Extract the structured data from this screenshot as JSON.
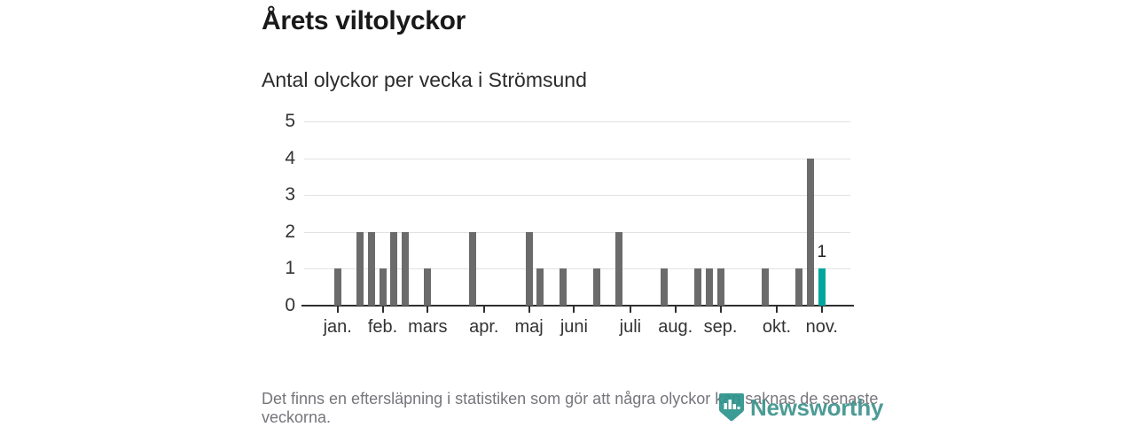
{
  "title": "Årets viltolyckor",
  "subtitle": "Antal olyckor per vecka i Strömsund",
  "footnote": "Det finns en eftersläpning i statistiken som gör att några olyckor kan saknas de senaste veckorna.",
  "logo": {
    "brand": "Newsworthy",
    "icon": "newsworthy-pin-barchart-icon",
    "color": "#3f948e"
  },
  "colors": {
    "bar": "#6b6b6b",
    "highlight": "#00a69e",
    "grid": "#e2e2e2",
    "axis": "#2f2f2f",
    "tick": "#2f2f2f",
    "title": "#191919",
    "subtitle": "#2b2b2b",
    "axis_label": "#333333",
    "footnote_text": "#76757b"
  },
  "chart_data": {
    "type": "bar",
    "title": "Årets viltolyckor",
    "subtitle": "Antal olyckor per vecka i Strömsund",
    "x_unit": "vecka",
    "n_weeks": 46,
    "values": [
      1,
      0,
      2,
      2,
      1,
      2,
      2,
      0,
      1,
      0,
      0,
      0,
      2,
      0,
      0,
      0,
      0,
      2,
      1,
      0,
      1,
      0,
      0,
      1,
      0,
      2,
      0,
      0,
      0,
      1,
      0,
      0,
      1,
      1,
      1,
      0,
      0,
      0,
      1,
      0,
      0,
      1,
      4,
      1,
      0,
      0
    ],
    "highlight": {
      "week": 44,
      "value": 1,
      "label": "1"
    },
    "ylim": [
      0,
      5
    ],
    "yticks": [
      0,
      1,
      2,
      3,
      4,
      5
    ],
    "month_ticks": [
      {
        "label": "jan.",
        "week": 1
      },
      {
        "label": "feb.",
        "week": 5
      },
      {
        "label": "mars",
        "week": 9
      },
      {
        "label": "apr.",
        "week": 14
      },
      {
        "label": "maj",
        "week": 18
      },
      {
        "label": "juni",
        "week": 22
      },
      {
        "label": "juli",
        "week": 27
      },
      {
        "label": "aug.",
        "week": 31
      },
      {
        "label": "sep.",
        "week": 35
      },
      {
        "label": "okt.",
        "week": 40
      },
      {
        "label": "nov.",
        "week": 44
      }
    ],
    "grid": "horizontal",
    "legend": "none"
  }
}
